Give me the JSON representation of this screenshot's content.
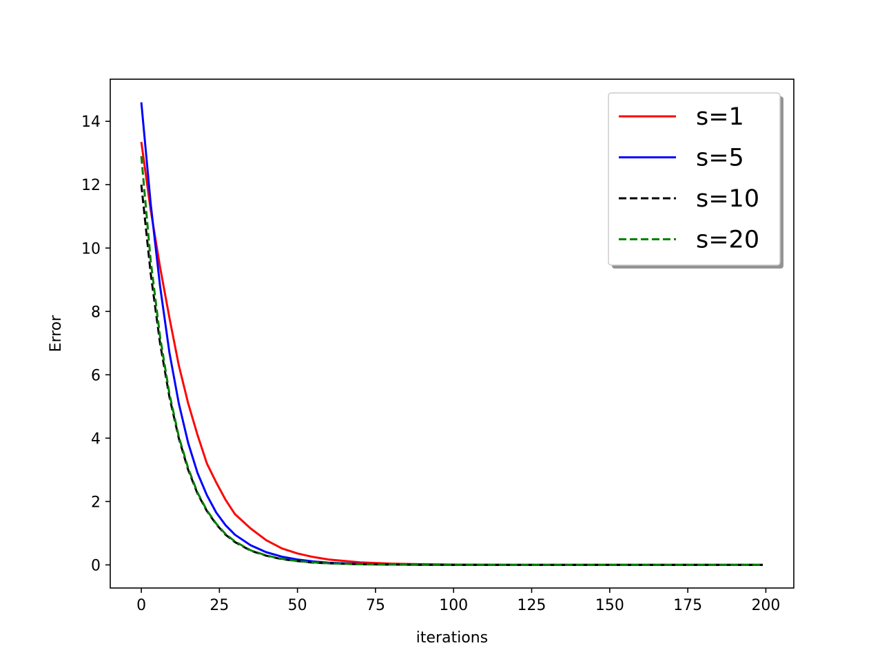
{
  "chart_data": {
    "type": "line",
    "title": "",
    "xlabel": "iterations",
    "ylabel": "Error",
    "xlim": [
      -9.95,
      208.95
    ],
    "ylim": [
      -0.73,
      15.33
    ],
    "xticks": [
      0,
      25,
      50,
      75,
      100,
      125,
      150,
      175,
      200
    ],
    "yticks": [
      0,
      2,
      4,
      6,
      8,
      10,
      12,
      14
    ],
    "grid": false,
    "legend_position": "upper right",
    "series": [
      {
        "name": "s=1",
        "color": "#ff0000",
        "style": "solid",
        "x": [
          0,
          3,
          6,
          9,
          12,
          15,
          18,
          21,
          24,
          27,
          30,
          35,
          40,
          45,
          50,
          55,
          60,
          70,
          80,
          90,
          100,
          120,
          150,
          175,
          199
        ],
        "y": [
          13.35,
          11.2,
          9.4,
          7.8,
          6.3,
          5.1,
          4.1,
          3.2,
          2.6,
          2.05,
          1.6,
          1.15,
          0.78,
          0.52,
          0.36,
          0.25,
          0.17,
          0.08,
          0.04,
          0.02,
          0.01,
          0.0,
          0.0,
          0.0,
          0.0
        ]
      },
      {
        "name": "s=5",
        "color": "#0000ff",
        "style": "solid",
        "x": [
          0,
          3,
          6,
          9,
          12,
          15,
          18,
          21,
          24,
          27,
          30,
          35,
          40,
          45,
          50,
          55,
          60,
          70,
          80,
          90,
          100,
          120,
          150,
          175,
          199
        ],
        "y": [
          14.6,
          11.4,
          8.8,
          6.7,
          5.1,
          3.85,
          2.9,
          2.2,
          1.65,
          1.25,
          0.95,
          0.62,
          0.4,
          0.26,
          0.17,
          0.11,
          0.07,
          0.03,
          0.01,
          0.01,
          0.0,
          0.0,
          0.0,
          0.0,
          0.0
        ]
      },
      {
        "name": "s=10",
        "color": "#000000",
        "style": "dashed",
        "x": [
          0,
          3,
          6,
          9,
          12,
          15,
          18,
          21,
          24,
          27,
          30,
          35,
          40,
          45,
          50,
          55,
          60,
          70,
          80,
          90,
          100,
          120,
          150,
          175,
          199
        ],
        "y": [
          12.0,
          9.2,
          7.0,
          5.3,
          4.0,
          3.0,
          2.25,
          1.7,
          1.28,
          0.95,
          0.72,
          0.45,
          0.29,
          0.18,
          0.12,
          0.07,
          0.05,
          0.02,
          0.01,
          0.0,
          0.0,
          0.0,
          0.0,
          0.0,
          0.0
        ]
      },
      {
        "name": "s=20",
        "color": "#008000",
        "style": "dashed",
        "x": [
          0,
          3,
          6,
          9,
          12,
          15,
          18,
          21,
          24,
          27,
          30,
          35,
          40,
          45,
          50,
          55,
          60,
          70,
          80,
          90,
          100,
          120,
          150,
          175,
          199
        ],
        "y": [
          12.9,
          9.6,
          7.2,
          5.4,
          4.05,
          3.05,
          2.28,
          1.72,
          1.3,
          0.97,
          0.74,
          0.46,
          0.3,
          0.19,
          0.12,
          0.08,
          0.05,
          0.02,
          0.01,
          0.0,
          0.0,
          0.0,
          0.0,
          0.0,
          0.0
        ]
      }
    ]
  }
}
